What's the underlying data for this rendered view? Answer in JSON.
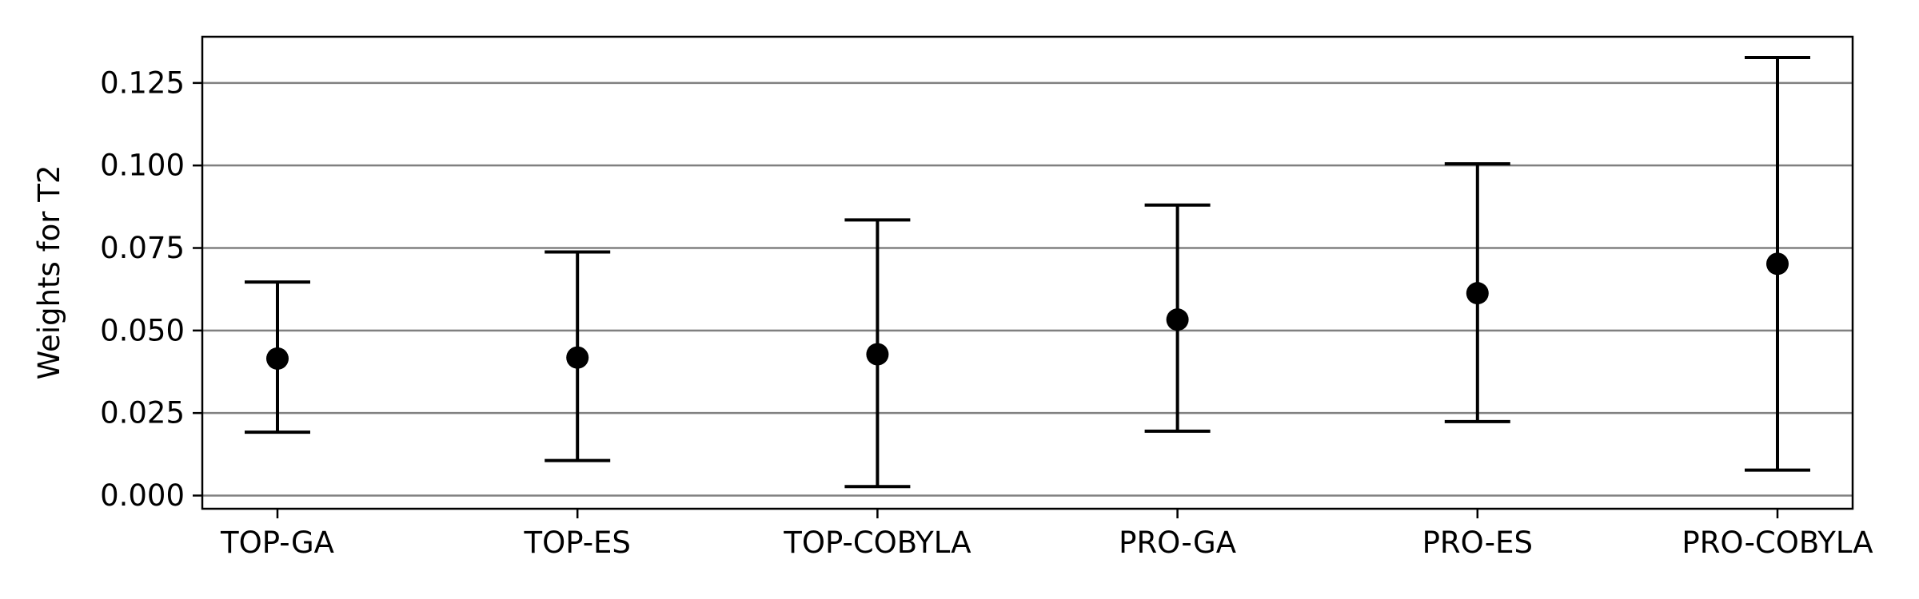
{
  "chart_data": {
    "type": "scatter",
    "title": "",
    "xlabel": "",
    "ylabel": "Weights for T2",
    "categories": [
      "TOP-GA",
      "TOP-ES",
      "TOP-COBYLA",
      "PRO-GA",
      "PRO-ES",
      "PRO-COBYLA"
    ],
    "values": [
      0.0415,
      0.0418,
      0.0428,
      0.0533,
      0.0613,
      0.0702
    ],
    "error_low": [
      0.0192,
      0.0106,
      0.0027,
      0.0195,
      0.0224,
      0.0077
    ],
    "error_high": [
      0.0647,
      0.0738,
      0.0835,
      0.088,
      0.1005,
      0.1327
    ],
    "ylim": [
      -0.004,
      0.139
    ],
    "yticks": [
      0.0,
      0.025,
      0.05,
      0.075,
      0.1,
      0.125
    ],
    "ytick_labels": [
      "0.000",
      "0.025",
      "0.050",
      "0.075",
      "0.100",
      "0.125"
    ],
    "grid": "horizontal",
    "legend": "none",
    "colors": {
      "marker": "#000000",
      "grid": "#808080",
      "axis": "#000000"
    }
  }
}
